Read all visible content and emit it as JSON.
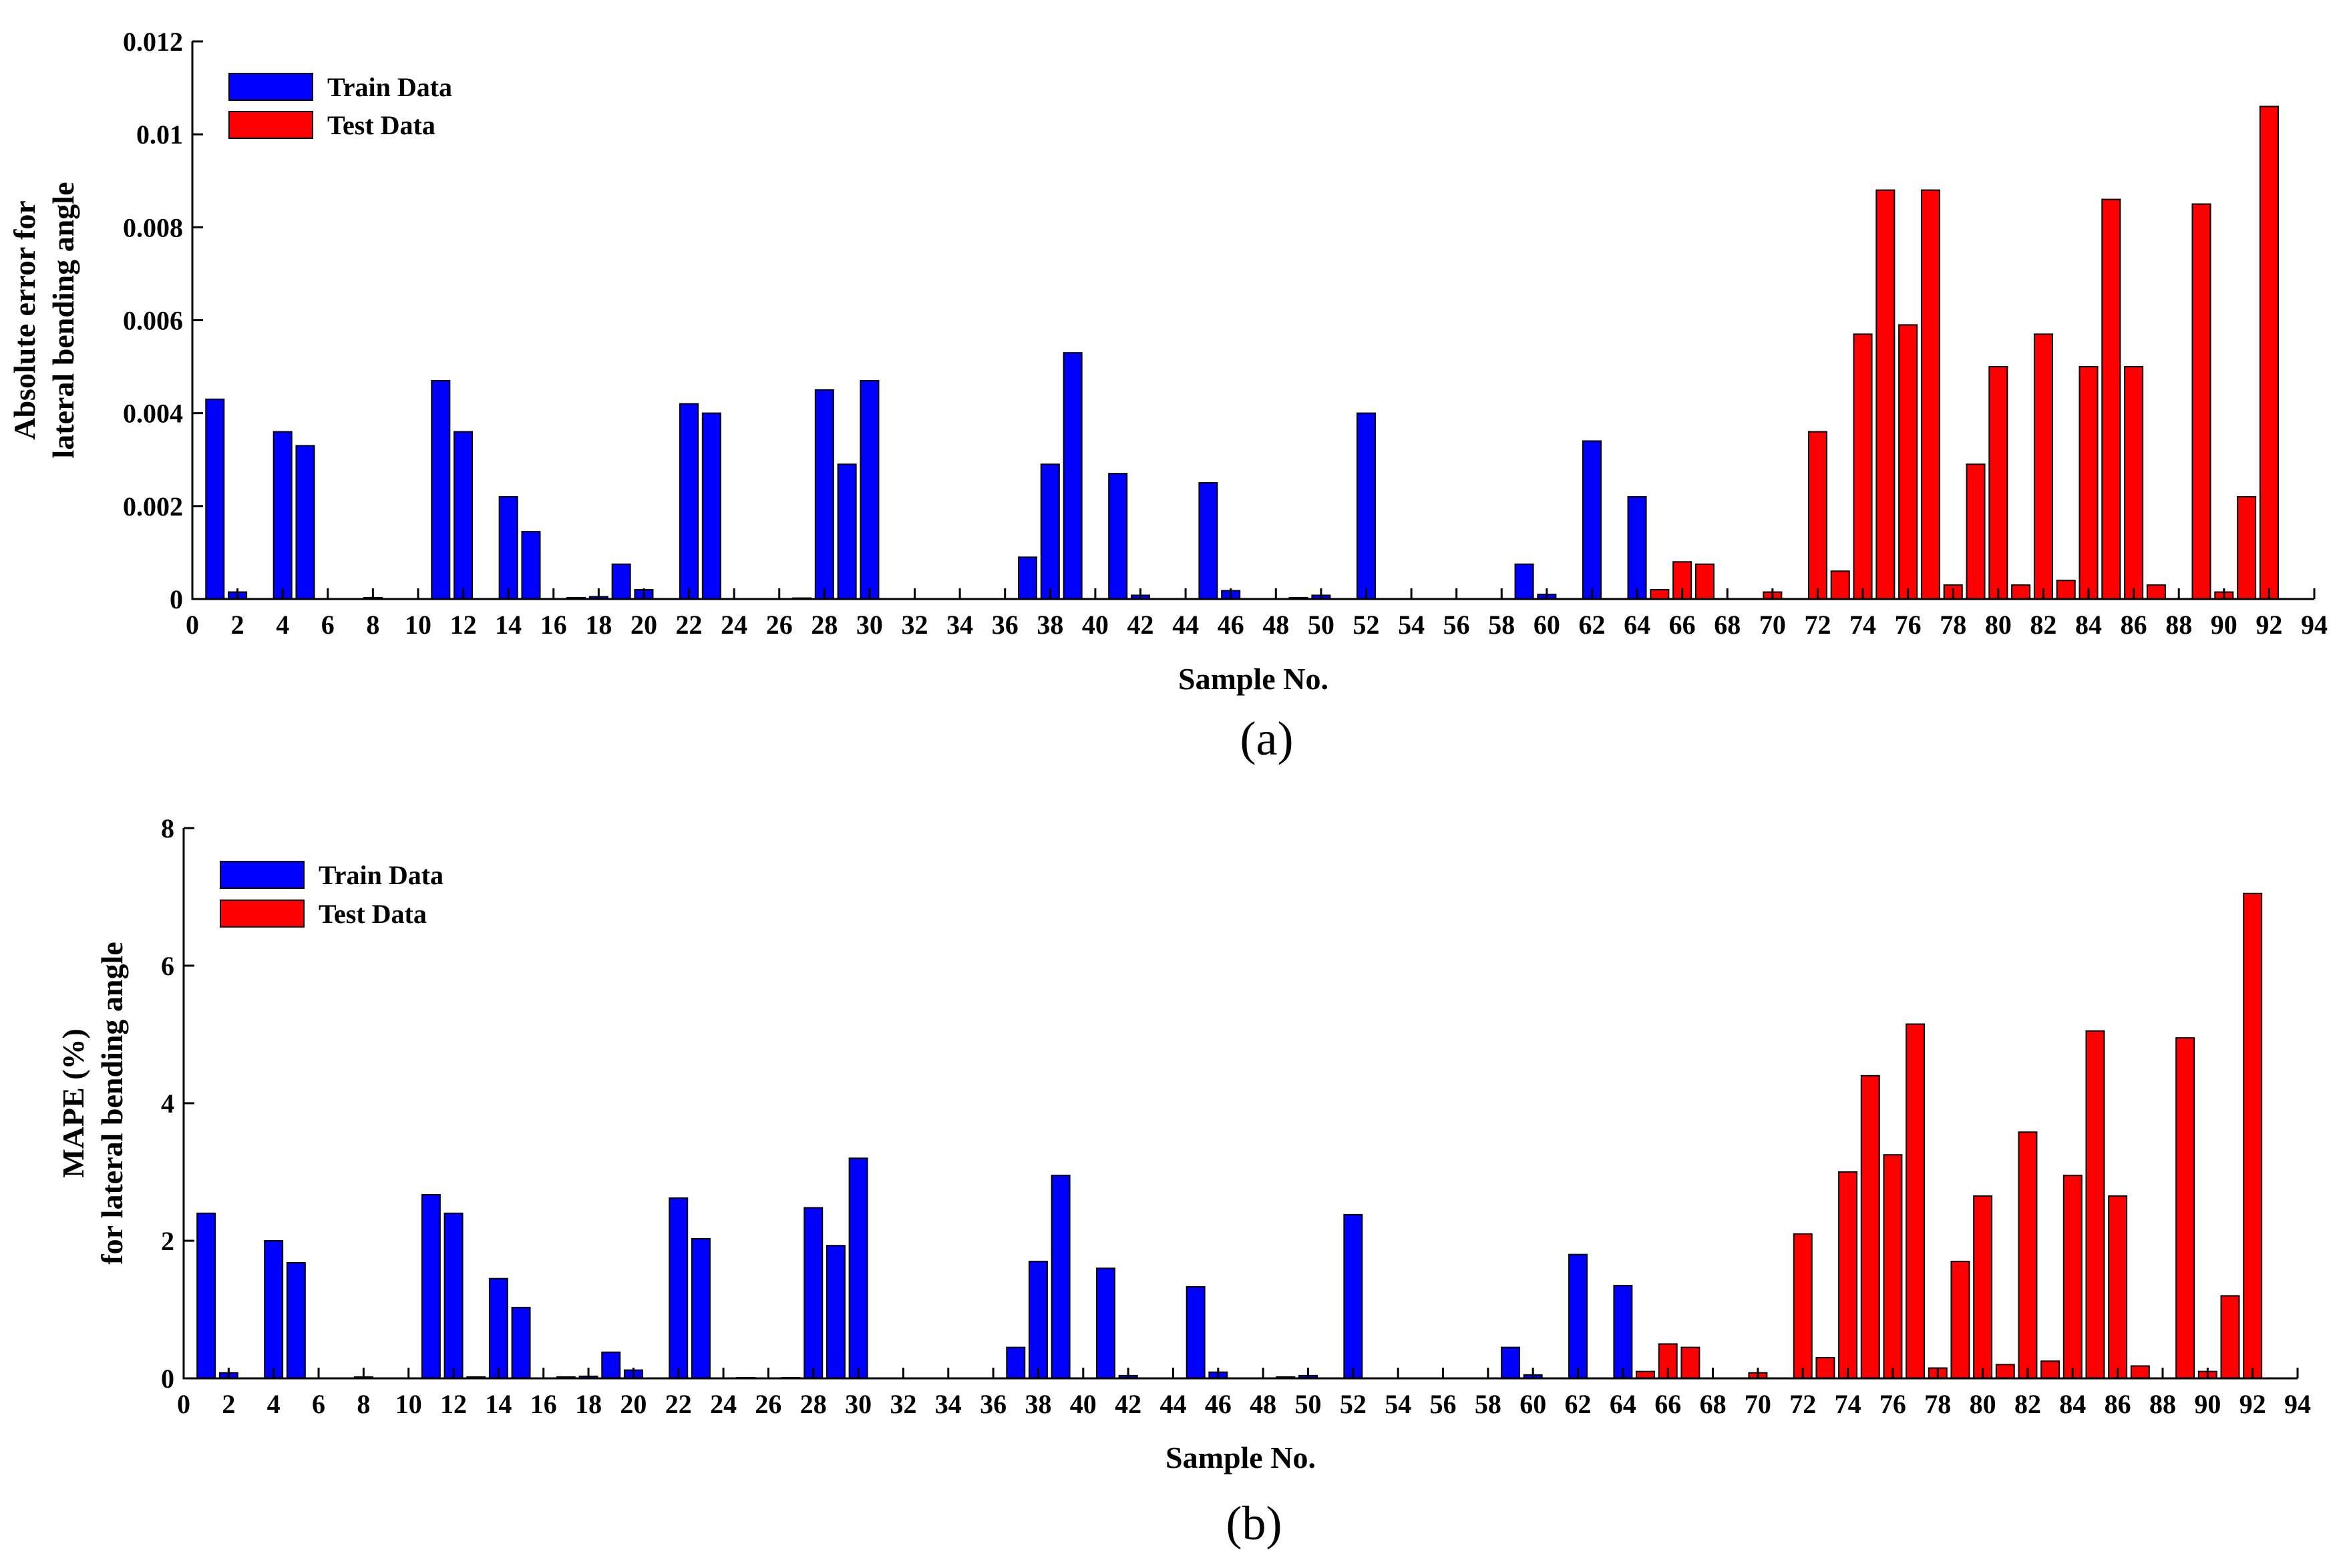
{
  "chart_data": [
    {
      "type": "bar",
      "panel_label": "(a)",
      "xlabel": "Sample No.",
      "ylabel_lines": [
        "Absolute error for",
        "lateral bending angle"
      ],
      "xlim": [
        0,
        94
      ],
      "ylim": [
        0,
        0.012
      ],
      "yticks": [
        "0",
        "0.002",
        "0.004",
        "0.006",
        "0.008",
        "0.01",
        "0.012"
      ],
      "ytick_values": [
        0,
        0.002,
        0.004,
        0.006,
        0.008,
        0.01,
        0.012
      ],
      "xticks": [
        "0",
        "2",
        "4",
        "6",
        "8",
        "10",
        "12",
        "14",
        "16",
        "18",
        "20",
        "22",
        "24",
        "26",
        "28",
        "30",
        "32",
        "34",
        "36",
        "38",
        "40",
        "42",
        "44",
        "46",
        "48",
        "50",
        "52",
        "54",
        "56",
        "58",
        "60",
        "62",
        "64",
        "66",
        "68",
        "70",
        "72",
        "74",
        "76",
        "78",
        "80",
        "82",
        "84",
        "86",
        "88",
        "90",
        "92",
        "94"
      ],
      "legend": [
        "Train Data",
        "Test Data"
      ],
      "legend_position": "top-left",
      "series": [
        {
          "name": "Train Data",
          "color": "#0000ff",
          "x": [
            1,
            2,
            3,
            4,
            5,
            6,
            7,
            8,
            9,
            10,
            11,
            12,
            13,
            14,
            15,
            16,
            17,
            18,
            19,
            20,
            21,
            22,
            23,
            24,
            25,
            26,
            27,
            28,
            29,
            30,
            31,
            32,
            33,
            34,
            35,
            36,
            37,
            38,
            39,
            40,
            41,
            42,
            43,
            44,
            45,
            46,
            47,
            48,
            49,
            50,
            51,
            52,
            53,
            54,
            55,
            56,
            57,
            58,
            59,
            60,
            61,
            62,
            63,
            64
          ],
          "values": [
            0.0043,
            0.00015,
            0,
            0.0036,
            0.0033,
            0,
            0,
            3e-05,
            0,
            0,
            0.0047,
            0.0036,
            0,
            0.0022,
            0.00145,
            0,
            3e-05,
            5e-05,
            0.00075,
            0.0002,
            0,
            0.0042,
            0.004,
            0,
            0,
            0,
            2e-05,
            0.0045,
            0.0029,
            0.0047,
            0,
            0,
            0,
            0,
            0,
            0,
            0.0009,
            0.0029,
            0.0053,
            0,
            0.0027,
            8e-05,
            0,
            0,
            0.0025,
            0.00018,
            0,
            0,
            3e-05,
            8e-05,
            0,
            0.004,
            0,
            0,
            0,
            0,
            0,
            0,
            0.00075,
            0.0001,
            0,
            0.0034,
            0,
            0.0022
          ]
        },
        {
          "name": "Test Data",
          "color": "#ff0000",
          "x": [
            65,
            66,
            67,
            68,
            69,
            70,
            71,
            72,
            73,
            74,
            75,
            76,
            77,
            78,
            79,
            80,
            81,
            82,
            83,
            84,
            85,
            86,
            87,
            88,
            89,
            90,
            91,
            92
          ],
          "values": [
            0.0002,
            0.0008,
            0.00075,
            0,
            0,
            0.00015,
            0,
            0.0036,
            0.0006,
            0.0057,
            0.0088,
            0.0059,
            0.0088,
            0.0003,
            0.0029,
            0.005,
            0.0003,
            0.0057,
            0.0004,
            0.005,
            0.0086,
            0.005,
            0.0003,
            0,
            0.0085,
            0.00015,
            0.0022,
            0.0106
          ]
        }
      ]
    },
    {
      "type": "bar",
      "panel_label": "(b)",
      "xlabel": "Sample No.",
      "ylabel_lines": [
        "MAPE (%)",
        "for lateral bending angle"
      ],
      "xlim": [
        0,
        94
      ],
      "ylim": [
        0,
        8
      ],
      "yticks": [
        "0",
        "2",
        "4",
        "6",
        "8"
      ],
      "ytick_values": [
        0,
        2,
        4,
        6,
        8
      ],
      "xticks": [
        "0",
        "2",
        "4",
        "6",
        "8",
        "10",
        "12",
        "14",
        "16",
        "18",
        "20",
        "22",
        "24",
        "26",
        "28",
        "30",
        "32",
        "34",
        "36",
        "38",
        "40",
        "42",
        "44",
        "46",
        "48",
        "50",
        "52",
        "54",
        "56",
        "58",
        "60",
        "62",
        "64",
        "66",
        "68",
        "70",
        "72",
        "74",
        "76",
        "78",
        "80",
        "82",
        "84",
        "86",
        "88",
        "90",
        "92",
        "94"
      ],
      "legend": [
        "Train Data",
        "Test Data"
      ],
      "legend_position": "top-left",
      "series": [
        {
          "name": "Train Data",
          "color": "#0000ff",
          "x": [
            1,
            2,
            3,
            4,
            5,
            6,
            7,
            8,
            9,
            10,
            11,
            12,
            13,
            14,
            15,
            16,
            17,
            18,
            19,
            20,
            21,
            22,
            23,
            24,
            25,
            26,
            27,
            28,
            29,
            30,
            31,
            32,
            33,
            34,
            35,
            36,
            37,
            38,
            39,
            40,
            41,
            42,
            43,
            44,
            45,
            46,
            47,
            48,
            49,
            50,
            51,
            52,
            53,
            54,
            55,
            56,
            57,
            58,
            59,
            60,
            61,
            62,
            63,
            64
          ],
          "values": [
            2.4,
            0.08,
            0,
            2.0,
            1.68,
            0,
            0,
            0.02,
            0,
            0,
            2.67,
            2.4,
            0.02,
            1.45,
            1.03,
            0,
            0.02,
            0.03,
            0.38,
            0.12,
            0,
            2.62,
            2.03,
            0,
            0.01,
            0,
            0.01,
            2.48,
            1.93,
            3.2,
            0,
            0,
            0,
            0,
            0,
            0,
            0.45,
            1.7,
            2.95,
            0,
            1.6,
            0.04,
            0,
            0,
            1.33,
            0.09,
            0,
            0,
            0.02,
            0.04,
            0,
            2.38,
            0,
            0,
            0,
            0,
            0,
            0,
            0.45,
            0.05,
            0,
            1.8,
            0,
            1.35
          ]
        },
        {
          "name": "Test Data",
          "color": "#ff0000",
          "x": [
            65,
            66,
            67,
            68,
            69,
            70,
            71,
            72,
            73,
            74,
            75,
            76,
            77,
            78,
            79,
            80,
            81,
            82,
            83,
            84,
            85,
            86,
            87,
            88,
            89,
            90,
            91,
            92
          ],
          "values": [
            0.1,
            0.5,
            0.45,
            0,
            0,
            0.08,
            0,
            2.1,
            0.3,
            3.0,
            4.4,
            3.25,
            5.15,
            0.15,
            1.7,
            2.65,
            0.2,
            3.58,
            0.25,
            2.95,
            5.05,
            2.65,
            0.18,
            0,
            4.95,
            0.1,
            1.2,
            7.05
          ]
        }
      ]
    }
  ]
}
